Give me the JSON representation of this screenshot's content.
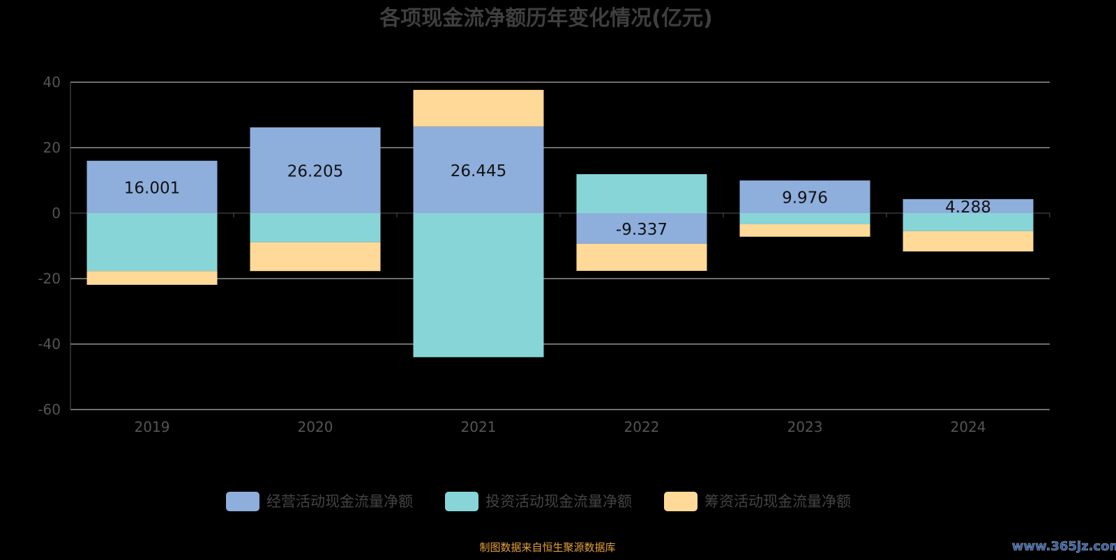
{
  "chart_data": {
    "type": "bar",
    "stacked": true,
    "title": "各项现金流净额历年变化情况(亿元)",
    "categories": [
      "2019",
      "2020",
      "2021",
      "2022",
      "2023",
      "2024"
    ],
    "ylim": [
      -60,
      40
    ],
    "yticks": [
      40,
      20,
      0,
      -20,
      -40,
      -60
    ],
    "grid": true,
    "legend_position": "bottom",
    "series": [
      {
        "name": "经营活动现金流量净额",
        "color": "#8eaedc",
        "values": [
          16.001,
          26.205,
          26.445,
          -9.337,
          9.976,
          4.288
        ],
        "labels": [
          "16.001",
          "26.205",
          "26.445",
          "-9.337",
          "9.976",
          "4.288"
        ]
      },
      {
        "name": "投资活动现金流量净额",
        "color": "#88d5d8",
        "values": [
          -17.7,
          -8.9,
          -44.0,
          11.9,
          -3.4,
          -5.5
        ]
      },
      {
        "name": "筹资活动现金流量净额",
        "color": "#ffd997",
        "values": [
          -4.2,
          -8.8,
          11.2,
          -8.3,
          -3.8,
          -6.2
        ]
      }
    ]
  },
  "footer": {
    "source": "制图数据来自恒生聚源数据库",
    "watermark": "www.365jz.com"
  }
}
